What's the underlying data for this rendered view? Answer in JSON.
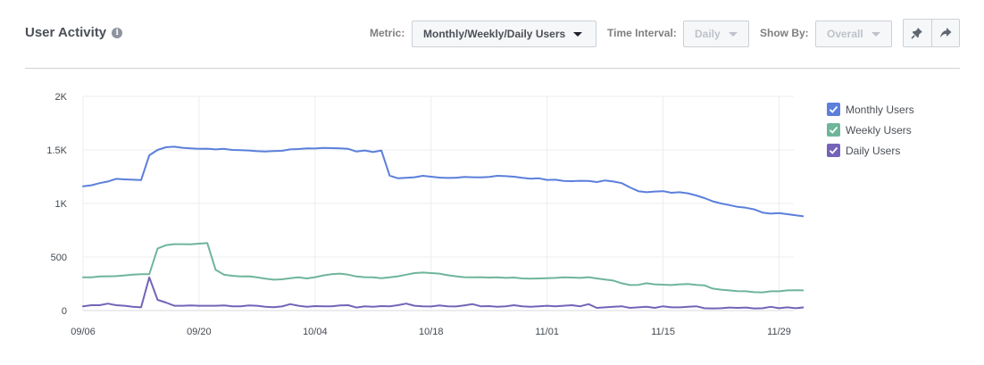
{
  "header": {
    "title": "User Activity",
    "info_icon": "info-icon",
    "metric": {
      "label": "Metric:",
      "value": "Monthly/Weekly/Daily Users"
    },
    "time_interval": {
      "label": "Time Interval:",
      "value": "Daily"
    },
    "show_by": {
      "label": "Show By:",
      "value": "Overall"
    },
    "actions": [
      {
        "icon": "pin-icon"
      },
      {
        "icon": "share-icon"
      }
    ]
  },
  "chart_data": {
    "type": "line",
    "title": "",
    "xlabel": "",
    "ylabel": "",
    "x_start": "09/06",
    "x_interval": "Daily",
    "x_ticks": [
      "09/06",
      "09/20",
      "10/04",
      "10/18",
      "11/01",
      "11/15",
      "11/29"
    ],
    "y_ticks": [
      {
        "value": 0,
        "label": "0"
      },
      {
        "value": 500,
        "label": "500"
      },
      {
        "value": 1000,
        "label": "1K"
      },
      {
        "value": 1500,
        "label": "1.5K"
      },
      {
        "value": 2000,
        "label": "2K"
      }
    ],
    "ylim": [
      0,
      2000
    ],
    "grid": true,
    "legend_position": "right",
    "series": [
      {
        "name": "Monthly Users",
        "color": "#5b7fdb",
        "values": [
          1160,
          1170,
          1190,
          1205,
          1230,
          1225,
          1222,
          1218,
          1450,
          1500,
          1525,
          1530,
          1520,
          1515,
          1510,
          1512,
          1505,
          1510,
          1500,
          1498,
          1495,
          1488,
          1485,
          1490,
          1492,
          1505,
          1508,
          1515,
          1513,
          1518,
          1517,
          1515,
          1510,
          1485,
          1495,
          1480,
          1495,
          1260,
          1235,
          1240,
          1245,
          1258,
          1250,
          1242,
          1238,
          1240,
          1248,
          1245,
          1243,
          1248,
          1258,
          1255,
          1250,
          1240,
          1232,
          1235,
          1220,
          1222,
          1210,
          1208,
          1212,
          1210,
          1200,
          1215,
          1205,
          1190,
          1150,
          1115,
          1105,
          1112,
          1115,
          1100,
          1105,
          1095,
          1075,
          1050,
          1020,
          1000,
          985,
          968,
          960,
          945,
          915,
          905,
          910,
          900,
          890,
          880,
          860,
          835,
          825,
          810
        ]
      },
      {
        "name": "Weekly Users",
        "color": "#6fb59a",
        "values": [
          310,
          310,
          318,
          320,
          322,
          328,
          335,
          340,
          340,
          580,
          610,
          620,
          620,
          618,
          625,
          630,
          380,
          335,
          325,
          318,
          320,
          310,
          298,
          288,
          292,
          302,
          310,
          300,
          312,
          328,
          340,
          345,
          335,
          318,
          312,
          310,
          302,
          310,
          320,
          335,
          350,
          355,
          350,
          345,
          330,
          320,
          312,
          310,
          312,
          308,
          310,
          305,
          308,
          300,
          298,
          300,
          302,
          305,
          310,
          308,
          305,
          312,
          300,
          290,
          280,
          255,
          238,
          240,
          255,
          245,
          242,
          238,
          245,
          248,
          240,
          235,
          205,
          195,
          188,
          182,
          180,
          172,
          170,
          180,
          180,
          188,
          190,
          188,
          190,
          192,
          190,
          180
        ]
      },
      {
        "name": "Daily Users",
        "color": "#7463b8",
        "values": [
          40,
          50,
          50,
          65,
          50,
          45,
          35,
          30,
          310,
          100,
          75,
          45,
          45,
          48,
          45,
          45,
          45,
          48,
          40,
          40,
          48,
          45,
          35,
          32,
          38,
          60,
          45,
          35,
          42,
          40,
          40,
          48,
          50,
          28,
          40,
          35,
          42,
          40,
          50,
          65,
          45,
          40,
          38,
          48,
          40,
          38,
          48,
          60,
          40,
          42,
          35,
          40,
          50,
          40,
          35,
          40,
          45,
          40,
          45,
          50,
          40,
          60,
          25,
          30,
          35,
          40,
          25,
          30,
          35,
          25,
          40,
          30,
          30,
          35,
          40,
          22,
          20,
          22,
          28,
          25,
          28,
          20,
          22,
          35,
          22,
          30,
          22,
          30,
          25,
          28,
          20,
          15
        ]
      }
    ]
  }
}
